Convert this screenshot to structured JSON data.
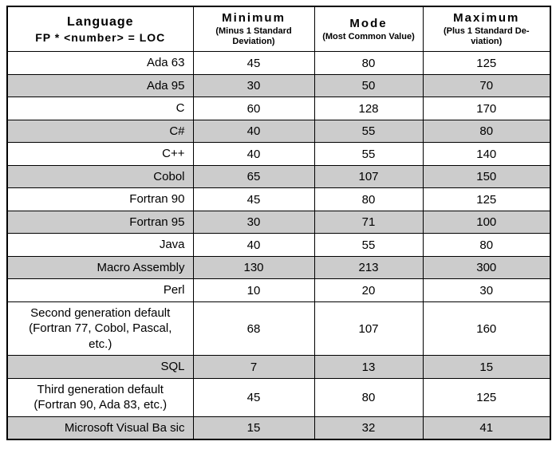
{
  "table": {
    "header": {
      "language_line1": "Language",
      "language_line2": "FP * <number> = LOC",
      "columns": [
        {
          "title": "Minimum",
          "subtitle": "(Minus 1 Standard\nDeviation)"
        },
        {
          "title": "Mode",
          "subtitle": "(Most Common Value)"
        },
        {
          "title": "Maximum",
          "subtitle": "(Plus 1 Standard De-\nviation)"
        }
      ]
    },
    "rows": [
      {
        "language": "Ada 63",
        "minimum": "45",
        "mode": "80",
        "maximum": "125",
        "shaded": false,
        "align": "right"
      },
      {
        "language": "Ada 95",
        "minimum": "30",
        "mode": "50",
        "maximum": "70",
        "shaded": true,
        "align": "right"
      },
      {
        "language": "C",
        "minimum": "60",
        "mode": "128",
        "maximum": "170",
        "shaded": false,
        "align": "right"
      },
      {
        "language": "C#",
        "minimum": "40",
        "mode": "55",
        "maximum": "80",
        "shaded": true,
        "align": "right"
      },
      {
        "language": "C++",
        "minimum": "40",
        "mode": "55",
        "maximum": "140",
        "shaded": false,
        "align": "right"
      },
      {
        "language": "Cobol",
        "minimum": "65",
        "mode": "107",
        "maximum": "150",
        "shaded": true,
        "align": "right"
      },
      {
        "language": "Fortran 90",
        "minimum": "45",
        "mode": "80",
        "maximum": "125",
        "shaded": false,
        "align": "right"
      },
      {
        "language": "Fortran 95",
        "minimum": "30",
        "mode": "71",
        "maximum": "100",
        "shaded": true,
        "align": "right"
      },
      {
        "language": "Java",
        "minimum": "40",
        "mode": "55",
        "maximum": "80",
        "shaded": false,
        "align": "right"
      },
      {
        "language": "Macro Assembly",
        "minimum": "130",
        "mode": "213",
        "maximum": "300",
        "shaded": true,
        "align": "right"
      },
      {
        "language": "Perl",
        "minimum": "10",
        "mode": "20",
        "maximum": "30",
        "shaded": false,
        "align": "right"
      },
      {
        "language": "Second generation default\n(Fortran 77, Cobol, Pascal,\netc.)",
        "minimum": "68",
        "mode": "107",
        "maximum": "160",
        "shaded": false,
        "align": "center"
      },
      {
        "language": "SQL",
        "minimum": "7",
        "mode": "13",
        "maximum": "15",
        "shaded": true,
        "align": "right"
      },
      {
        "language": "Third generation default\n(Fortran 90, Ada 83, etc.)",
        "minimum": "45",
        "mode": "80",
        "maximum": "125",
        "shaded": false,
        "align": "center"
      },
      {
        "language": "Microsoft Visual Ba sic",
        "minimum": "15",
        "mode": "32",
        "maximum": "41",
        "shaded": true,
        "align": "right"
      }
    ]
  },
  "colors": {
    "row_shade": "#cccccc",
    "border": "#000000",
    "background": "#ffffff"
  },
  "chart_data": {
    "type": "table",
    "title": "Function Points to Lines of Code conversion table",
    "columns": [
      "Language FP * <number> = LOC",
      "Minimum (Minus 1 Standard Deviation)",
      "Mode (Most Common Value)",
      "Maximum (Plus 1 Standard Deviation)"
    ],
    "rows": [
      [
        "Ada 63",
        45,
        80,
        125
      ],
      [
        "Ada 95",
        30,
        50,
        70
      ],
      [
        "C",
        60,
        128,
        170
      ],
      [
        "C#",
        40,
        55,
        80
      ],
      [
        "C++",
        40,
        55,
        140
      ],
      [
        "Cobol",
        65,
        107,
        150
      ],
      [
        "Fortran 90",
        45,
        80,
        125
      ],
      [
        "Fortran 95",
        30,
        71,
        100
      ],
      [
        "Java",
        40,
        55,
        80
      ],
      [
        "Macro Assembly",
        130,
        213,
        300
      ],
      [
        "Perl",
        10,
        20,
        30
      ],
      [
        "Second generation default (Fortran 77, Cobol, Pascal, etc.)",
        68,
        107,
        160
      ],
      [
        "SQL",
        7,
        13,
        15
      ],
      [
        "Third generation default (Fortran 90, Ada 83, etc.)",
        45,
        80,
        125
      ],
      [
        "Microsoft Visual Ba sic",
        15,
        32,
        41
      ]
    ]
  }
}
